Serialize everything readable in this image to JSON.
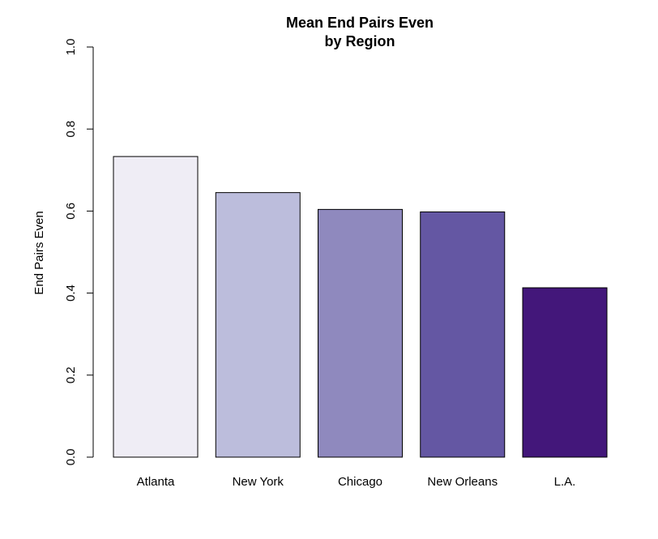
{
  "chart_data": {
    "type": "bar",
    "title": "Mean End Pairs Even",
    "subtitle": "by Region",
    "xlabel": "",
    "ylabel": "End Pairs Even",
    "ylim": [
      0,
      1
    ],
    "yticks": [
      "0.0",
      "0.2",
      "0.4",
      "0.6",
      "0.8",
      "1.0"
    ],
    "categories": [
      "Atlanta",
      "New York",
      "Chicago",
      "New Orleans",
      "L.A."
    ],
    "values": [
      0.733,
      0.645,
      0.604,
      0.598,
      0.413
    ],
    "colors": [
      "#EFEDF5",
      "#BCBDDC",
      "#8F89BE",
      "#6457A3",
      "#43177A"
    ],
    "grid": false,
    "legend": "none"
  }
}
